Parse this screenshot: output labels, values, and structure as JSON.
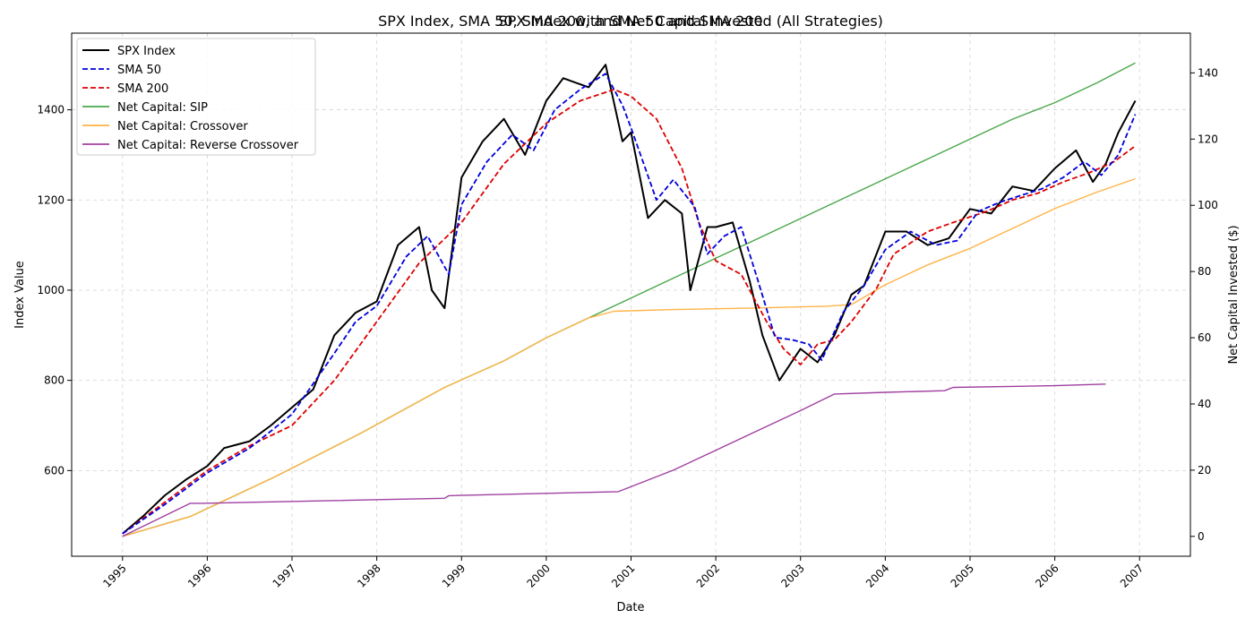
{
  "chart_data": {
    "type": "line",
    "title_left": "SPX Index, SMA 50, SMA 200, and Net Capital Invested (All Strategies)",
    "title_right": "SPX Index with SMA 50 and SMA 200",
    "xlabel": "Date",
    "ylabel_left": "Index Value",
    "ylabel_right": "Net Capital Invested ($)",
    "xlim": [
      1994.4,
      2007.6
    ],
    "ylim_left": [
      410,
      1570
    ],
    "ylim_right": [
      -6,
      152
    ],
    "x_ticks": [
      1995,
      1996,
      1997,
      1998,
      1999,
      2000,
      2001,
      2002,
      2003,
      2004,
      2005,
      2006,
      2007
    ],
    "x_tick_labels": [
      "1995",
      "1996",
      "1997",
      "1998",
      "1999",
      "2000",
      "2001",
      "2002",
      "2003",
      "2004",
      "2005",
      "2006",
      "2007"
    ],
    "y_ticks_left": [
      600,
      800,
      1000,
      1200,
      1400
    ],
    "y_ticks_right": [
      0,
      20,
      40,
      60,
      80,
      100,
      120,
      140
    ],
    "grid": true,
    "legend_position": "top-left",
    "legend": [
      "SPX Index",
      "SMA 50",
      "SMA 200",
      "Net Capital: SIP",
      "Net Capital: Crossover",
      "Net Capital: Reverse Crossover"
    ],
    "series": [
      {
        "name": "SPX Index",
        "axis": "left",
        "color": "#000000",
        "style": "solid",
        "x": [
          1995.0,
          1995.25,
          1995.5,
          1995.75,
          1996.0,
          1996.2,
          1996.5,
          1996.75,
          1997.0,
          1997.25,
          1997.5,
          1997.75,
          1998.0,
          1998.25,
          1998.5,
          1998.65,
          1998.8,
          1999.0,
          1999.25,
          1999.5,
          1999.75,
          2000.0,
          2000.2,
          2000.5,
          2000.7,
          2000.9,
          2001.0,
          2001.2,
          2001.4,
          2001.6,
          2001.7,
          2001.9,
          2002.0,
          2002.2,
          2002.4,
          2002.55,
          2002.75,
          2003.0,
          2003.2,
          2003.4,
          2003.6,
          2003.75,
          2004.0,
          2004.25,
          2004.5,
          2004.75,
          2005.0,
          2005.25,
          2005.5,
          2005.75,
          2006.0,
          2006.25,
          2006.45,
          2006.6,
          2006.75,
          2006.95
        ],
        "y": [
          460,
          500,
          545,
          580,
          610,
          650,
          665,
          700,
          740,
          780,
          900,
          950,
          975,
          1100,
          1140,
          1000,
          960,
          1250,
          1330,
          1380,
          1300,
          1420,
          1470,
          1450,
          1500,
          1330,
          1350,
          1160,
          1200,
          1170,
          1000,
          1140,
          1140,
          1150,
          1020,
          900,
          800,
          870,
          840,
          900,
          990,
          1010,
          1130,
          1130,
          1100,
          1115,
          1180,
          1170,
          1230,
          1220,
          1270,
          1310,
          1240,
          1280,
          1350,
          1420
        ]
      },
      {
        "name": "SMA 50",
        "axis": "left",
        "color": "#0000dd",
        "style": "dashed",
        "x": [
          1995.0,
          1995.5,
          1996.0,
          1996.5,
          1997.0,
          1997.5,
          1997.75,
          1998.0,
          1998.35,
          1998.6,
          1998.85,
          1999.0,
          1999.3,
          1999.6,
          1999.85,
          2000.1,
          2000.4,
          2000.7,
          2000.9,
          2001.0,
          2001.3,
          2001.5,
          2001.75,
          2001.9,
          2002.1,
          2002.3,
          2002.5,
          2002.7,
          2002.9,
          2003.1,
          2003.25,
          2003.5,
          2003.75,
          2004.0,
          2004.3,
          2004.6,
          2004.85,
          2005.1,
          2005.35,
          2005.6,
          2005.85,
          2006.1,
          2006.35,
          2006.55,
          2006.75,
          2006.95
        ],
        "y": [
          460,
          525,
          595,
          650,
          725,
          860,
          930,
          965,
          1075,
          1120,
          1035,
          1190,
          1285,
          1345,
          1310,
          1400,
          1445,
          1480,
          1410,
          1360,
          1200,
          1245,
          1185,
          1080,
          1120,
          1140,
          1020,
          895,
          890,
          880,
          845,
          950,
          1010,
          1090,
          1130,
          1100,
          1110,
          1175,
          1195,
          1210,
          1225,
          1250,
          1285,
          1255,
          1300,
          1390
        ]
      },
      {
        "name": "SMA 200",
        "axis": "left",
        "color": "#dd0000",
        "style": "dashed",
        "x": [
          1995.0,
          1995.5,
          1996.0,
          1996.5,
          1997.0,
          1997.5,
          1998.0,
          1998.5,
          1999.0,
          1999.5,
          2000.0,
          2000.4,
          2000.8,
          2001.0,
          2001.3,
          2001.6,
          2001.8,
          2002.0,
          2002.3,
          2002.6,
          2002.8,
          2003.0,
          2003.2,
          2003.4,
          2003.6,
          2003.9,
          2004.1,
          2004.5,
          2004.8,
          2005.2,
          2005.5,
          2005.8,
          2006.1,
          2006.4,
          2006.7,
          2006.95
        ],
        "y": [
          460,
          530,
          600,
          655,
          700,
          800,
          930,
          1060,
          1150,
          1280,
          1370,
          1420,
          1445,
          1430,
          1380,
          1270,
          1150,
          1065,
          1035,
          930,
          870,
          835,
          880,
          890,
          930,
          1005,
          1080,
          1130,
          1150,
          1175,
          1200,
          1215,
          1240,
          1260,
          1285,
          1320
        ]
      },
      {
        "name": "Net Capital: SIP",
        "axis": "right",
        "color": "#4aa64a",
        "style": "solid",
        "x": [
          1995.0,
          1995.8,
          1996.8,
          1997.8,
          1998.8,
          1999.5,
          2000.0,
          2000.5,
          2001.0,
          2001.5,
          2002.0,
          2002.5,
          2003.0,
          2003.5,
          2004.0,
          2004.5,
          2005.0,
          2005.5,
          2006.0,
          2006.5,
          2006.95
        ],
        "y": [
          0,
          6,
          18,
          31,
          45,
          53,
          60,
          66,
          72,
          78,
          84,
          90,
          96,
          102,
          108,
          114,
          120,
          126,
          131,
          137,
          143
        ]
      },
      {
        "name": "Net Capital: Crossover",
        "axis": "right",
        "color": "#ffb347",
        "style": "solid",
        "x": [
          1995.0,
          1995.8,
          1996.8,
          1997.8,
          1998.8,
          1999.5,
          2000.0,
          2000.5,
          2000.8,
          2001.5,
          2002.5,
          2003.3,
          2003.6,
          2004.0,
          2004.5,
          2005.0,
          2005.5,
          2006.0,
          2006.5,
          2006.95
        ],
        "y": [
          0,
          6,
          18,
          31,
          45,
          53,
          60,
          66,
          68,
          68.5,
          69,
          69.5,
          70,
          76,
          82,
          87,
          93,
          99,
          104,
          108
        ]
      },
      {
        "name": "Net Capital: Reverse Crossover",
        "axis": "right",
        "color": "#a040a0",
        "style": "solid",
        "x": [
          1995.0,
          1995.8,
          1995.95,
          1998.8,
          1998.85,
          2000.85,
          2001.5,
          2002.0,
          2002.5,
          2003.0,
          2003.4,
          2004.0,
          2004.7,
          2004.8,
          2006.0,
          2006.6
        ],
        "y": [
          0,
          10,
          10,
          11.5,
          12.3,
          13.5,
          20,
          26,
          32,
          38,
          43,
          43.5,
          44,
          45,
          45.5,
          46
        ]
      }
    ]
  }
}
